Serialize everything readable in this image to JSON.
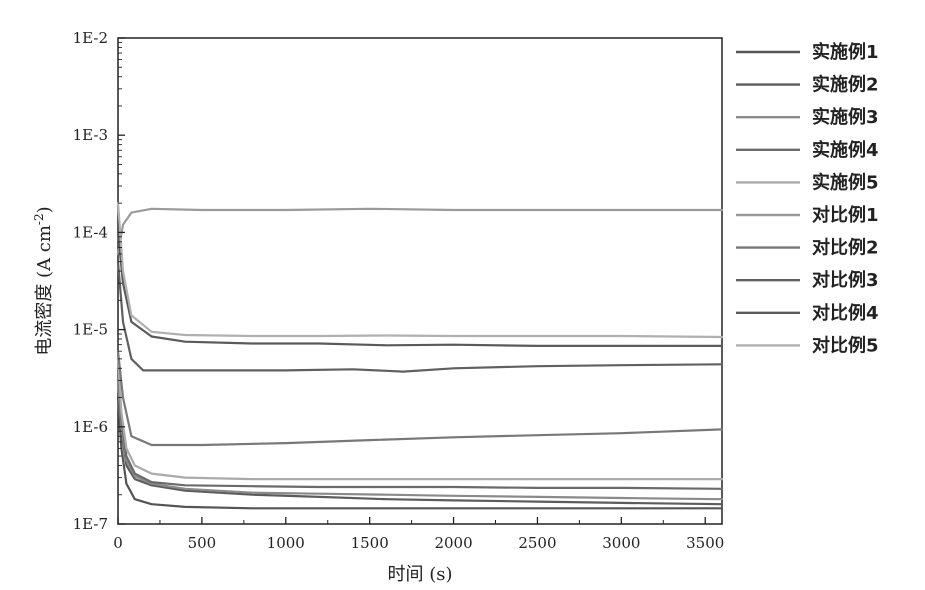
{
  "chart_data": {
    "type": "line",
    "title": "",
    "xlabel": "时间 (s)",
    "ylabel": "电流密度 (A cm",
    "ylabel_sup": "-2",
    "ylabel_close": ")",
    "xlim": [
      0,
      3600
    ],
    "ylim": [
      1e-07,
      0.01
    ],
    "y_scale": "log",
    "grid": false,
    "legend_position": "right",
    "x_ticks": [
      0,
      500,
      1000,
      1500,
      2000,
      2500,
      3000,
      3500
    ],
    "y_ticks": [
      1e-07,
      1e-06,
      1e-05,
      0.0001,
      0.001,
      0.01
    ],
    "y_tick_labels": [
      "1E-7",
      "1E-6",
      "1E-5",
      "1E-4",
      "1E-3",
      "1E-2"
    ],
    "series": [
      {
        "name": "实施例1",
        "color": "#555555",
        "points": [
          [
            0,
            2e-06
          ],
          [
            20,
            6e-07
          ],
          [
            50,
            2.6e-07
          ],
          [
            100,
            1.8e-07
          ],
          [
            200,
            1.6e-07
          ],
          [
            400,
            1.5e-07
          ],
          [
            800,
            1.45e-07
          ],
          [
            1200,
            1.45e-07
          ],
          [
            1600,
            1.45e-07
          ],
          [
            2000,
            1.45e-07
          ],
          [
            2500,
            1.45e-07
          ],
          [
            3000,
            1.45e-07
          ],
          [
            3600,
            1.45e-07
          ]
        ]
      },
      {
        "name": "实施例2",
        "color": "#5c5c5c",
        "points": [
          [
            0,
            3e-06
          ],
          [
            20,
            9e-07
          ],
          [
            50,
            4e-07
          ],
          [
            100,
            2.9e-07
          ],
          [
            200,
            2.5e-07
          ],
          [
            400,
            2.2e-07
          ],
          [
            800,
            2e-07
          ],
          [
            1200,
            1.9e-07
          ],
          [
            1600,
            1.8e-07
          ],
          [
            2000,
            1.75e-07
          ],
          [
            2500,
            1.7e-07
          ],
          [
            3000,
            1.65e-07
          ],
          [
            3600,
            1.6e-07
          ]
        ]
      },
      {
        "name": "实施例3",
        "color": "#8a8a8a",
        "points": [
          [
            0,
            3e-06
          ],
          [
            20,
            1e-06
          ],
          [
            50,
            4.5e-07
          ],
          [
            100,
            3.1e-07
          ],
          [
            200,
            2.6e-07
          ],
          [
            400,
            2.3e-07
          ],
          [
            800,
            2.1e-07
          ],
          [
            1200,
            2.05e-07
          ],
          [
            1600,
            2e-07
          ],
          [
            2000,
            1.95e-07
          ],
          [
            2500,
            1.9e-07
          ],
          [
            3000,
            1.85e-07
          ],
          [
            3600,
            1.8e-07
          ]
        ]
      },
      {
        "name": "实施例4",
        "color": "#6a6a6a",
        "points": [
          [
            0,
            4e-06
          ],
          [
            20,
            1.2e-06
          ],
          [
            50,
            5e-07
          ],
          [
            100,
            3.3e-07
          ],
          [
            200,
            2.7e-07
          ],
          [
            400,
            2.5e-07
          ],
          [
            800,
            2.45e-07
          ],
          [
            1200,
            2.4e-07
          ],
          [
            1600,
            2.4e-07
          ],
          [
            2000,
            2.4e-07
          ],
          [
            2500,
            2.35e-07
          ],
          [
            3000,
            2.35e-07
          ],
          [
            3600,
            2.3e-07
          ]
        ]
      },
      {
        "name": "实施例5",
        "color": "#aaaaaa",
        "points": [
          [
            0,
            5e-06
          ],
          [
            20,
            1.4e-06
          ],
          [
            50,
            6e-07
          ],
          [
            100,
            4e-07
          ],
          [
            200,
            3.3e-07
          ],
          [
            400,
            3e-07
          ],
          [
            800,
            2.9e-07
          ],
          [
            1200,
            2.9e-07
          ],
          [
            1600,
            2.9e-07
          ],
          [
            2000,
            2.9e-07
          ],
          [
            2500,
            2.9e-07
          ],
          [
            3000,
            2.9e-07
          ],
          [
            3600,
            2.9e-07
          ]
        ]
      },
      {
        "name": "对比例1",
        "color": "#9a9a9a",
        "points": [
          [
            0,
            6e-05
          ],
          [
            30,
            0.00012
          ],
          [
            80,
            0.00016
          ],
          [
            200,
            0.000175
          ],
          [
            500,
            0.00017
          ],
          [
            1000,
            0.00017
          ],
          [
            1500,
            0.000175
          ],
          [
            2000,
            0.00017
          ],
          [
            2500,
            0.00017
          ],
          [
            3000,
            0.00017
          ],
          [
            3600,
            0.00017
          ]
        ]
      },
      {
        "name": "对比例2",
        "color": "#787878",
        "points": [
          [
            0,
            6e-06
          ],
          [
            30,
            2e-06
          ],
          [
            80,
            8e-07
          ],
          [
            200,
            6.5e-07
          ],
          [
            500,
            6.5e-07
          ],
          [
            1000,
            6.8e-07
          ],
          [
            1500,
            7.3e-07
          ],
          [
            2000,
            7.8e-07
          ],
          [
            2500,
            8.2e-07
          ],
          [
            3000,
            8.6e-07
          ],
          [
            3600,
            9.4e-07
          ]
        ]
      },
      {
        "name": "对比例3",
        "color": "#606060",
        "points": [
          [
            0,
            5e-05
          ],
          [
            30,
            1.2e-05
          ],
          [
            80,
            5e-06
          ],
          [
            150,
            3.8e-06
          ],
          [
            300,
            3.8e-06
          ],
          [
            600,
            3.8e-06
          ],
          [
            1000,
            3.8e-06
          ],
          [
            1400,
            3.9e-06
          ],
          [
            1700,
            3.7e-06
          ],
          [
            2000,
            4e-06
          ],
          [
            2500,
            4.2e-06
          ],
          [
            3000,
            4.3e-06
          ],
          [
            3600,
            4.4e-06
          ]
        ]
      },
      {
        "name": "对比例4",
        "color": "#5a5a5a",
        "points": [
          [
            0,
            0.0001
          ],
          [
            30,
            3e-05
          ],
          [
            80,
            1.2e-05
          ],
          [
            200,
            8.5e-06
          ],
          [
            400,
            7.5e-06
          ],
          [
            800,
            7.2e-06
          ],
          [
            1200,
            7.2e-06
          ],
          [
            1600,
            6.9e-06
          ],
          [
            2000,
            7e-06
          ],
          [
            2500,
            6.8e-06
          ],
          [
            3000,
            6.8e-06
          ],
          [
            3600,
            6.8e-06
          ]
        ]
      },
      {
        "name": "对比例5",
        "color": "#b0b0b0",
        "points": [
          [
            0,
            0.0002
          ],
          [
            30,
            4e-05
          ],
          [
            80,
            1.4e-05
          ],
          [
            200,
            9.5e-06
          ],
          [
            400,
            8.8e-06
          ],
          [
            800,
            8.6e-06
          ],
          [
            1200,
            8.6e-06
          ],
          [
            1600,
            8.7e-06
          ],
          [
            2000,
            8.6e-06
          ],
          [
            2500,
            8.6e-06
          ],
          [
            3000,
            8.6e-06
          ],
          [
            3600,
            8.4e-06
          ]
        ]
      }
    ]
  }
}
